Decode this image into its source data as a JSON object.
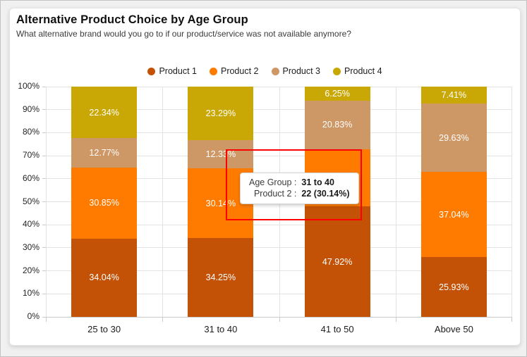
{
  "header": {
    "title": "Alternative Product Choice by Age Group",
    "subtitle": "What alternative brand would you go to if our product/service was not available anymore?"
  },
  "chart_data": {
    "type": "bar",
    "subtype": "stacked-100-percent",
    "title": "Alternative Product Choice by Age Group",
    "subtitle": "What alternative brand would you go to if our product/service was not available anymore?",
    "categories": [
      "25 to 30",
      "31 to 40",
      "41 to 50",
      "Above 50"
    ],
    "series": [
      {
        "name": "Product 1",
        "color": "#C35207",
        "values": [
          34.04,
          34.25,
          47.92,
          25.93
        ],
        "labels": [
          "34.04%",
          "34.25%",
          "47.92%",
          "25.93%"
        ]
      },
      {
        "name": "Product 2",
        "color": "#FF7B00",
        "values": [
          30.85,
          30.14,
          25.0,
          37.04
        ],
        "labels": [
          "30.85%",
          "30.14%",
          null,
          "37.04%"
        ]
      },
      {
        "name": "Product 3",
        "color": "#CE9766",
        "values": [
          12.77,
          12.33,
          20.83,
          29.63
        ],
        "labels": [
          "12.77%",
          "12.33%",
          "20.83%",
          "29.63%"
        ]
      },
      {
        "name": "Product 4",
        "color": "#C9A805",
        "values": [
          22.34,
          23.29,
          6.25,
          7.41
        ],
        "labels": [
          "22.34%",
          "23.29%",
          "6.25%",
          "7.41%"
        ]
      }
    ],
    "ylim": [
      0,
      100
    ],
    "y_ticks": [
      "0%",
      "10%",
      "20%",
      "30%",
      "40%",
      "50%",
      "60%",
      "70%",
      "80%",
      "90%",
      "100%"
    ],
    "grid": true,
    "legend_position": "top-center",
    "data_label_color": "#FFFFFF"
  },
  "tooltip": {
    "rows": [
      {
        "label": "Age Group :",
        "value": "31 to 40"
      },
      {
        "label": "Product 2 :",
        "value": "22 (30.14%)"
      }
    ]
  },
  "colors": {
    "grid": "#E3E3E3",
    "axis": "#C9C9C9",
    "selection_rect": "#FF0000",
    "card_background": "#FFFFFF",
    "page_background": "#F0F0F0"
  }
}
